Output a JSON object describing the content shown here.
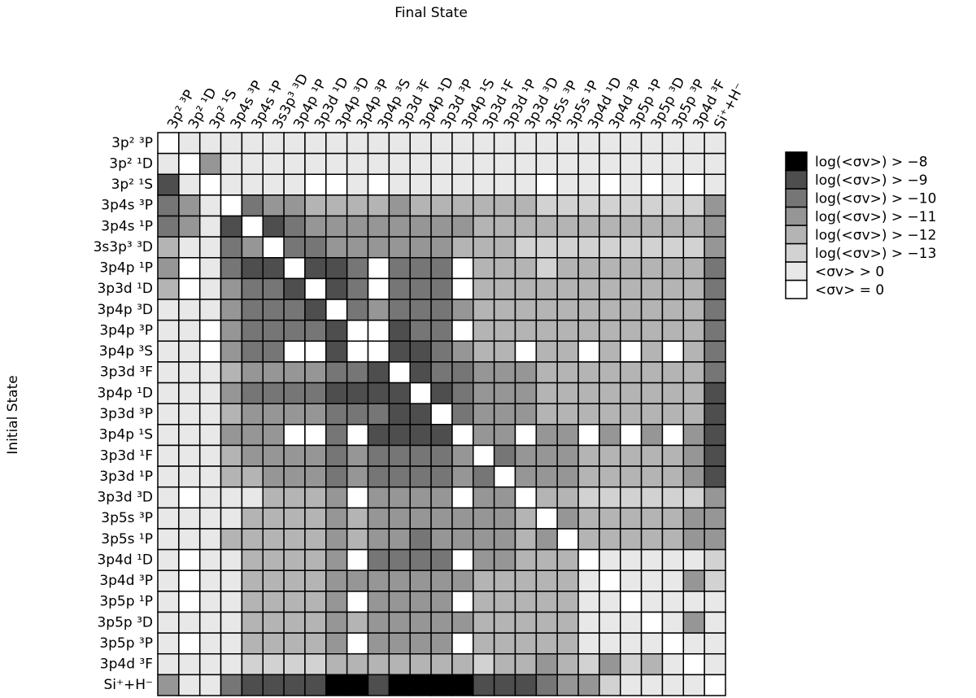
{
  "chart_data": {
    "type": "heatmap",
    "title": "Final State",
    "y_label": "Initial State",
    "columns": [
      "3p² ³P",
      "3p² ¹D",
      "3p² ¹S",
      "3p4s ³P",
      "3p4s ¹P",
      "3s3p³ ³D",
      "3p4p ¹P",
      "3p3d ¹D",
      "3p4p ³D",
      "3p4p ³P",
      "3p4p ³S",
      "3p3d ³F",
      "3p4p ¹D",
      "3p3d ³P",
      "3p4p ¹S",
      "3p3d ¹F",
      "3p3d ¹P",
      "3p3d ³D",
      "3p5s ³P",
      "3p5s ¹P",
      "3p4d ¹D",
      "3p4d ³P",
      "3p5p ¹P",
      "3p5p ³D",
      "3p5p ³P",
      "3p4d ³F",
      "Si⁺+H⁻"
    ],
    "rows": [
      "3p² ³P",
      "3p² ¹D",
      "3p² ¹S",
      "3p4s ³P",
      "3p4s ¹P",
      "3s3p³ ³D",
      "3p4p ¹P",
      "3p3d ¹D",
      "3p4p ³D",
      "3p4p ³P",
      "3p4p ³S",
      "3p3d ³F",
      "3p4p ¹D",
      "3p3d ³P",
      "3p4p ¹S",
      "3p3d ¹F",
      "3p3d ¹P",
      "3p3d ³D",
      "3p5s ³P",
      "3p5s ¹P",
      "3p4d ¹D",
      "3p4d ³P",
      "3p5p ¹P",
      "3p5p ³D",
      "3p5p ³P",
      "3p4d ³F",
      "Si⁺+H⁻"
    ],
    "legend": [
      {
        "label": "<σv> = 0",
        "color": "#ffffff"
      },
      {
        "label": "<σv> > 0",
        "color": "#e8e8e8"
      },
      {
        "label": "log(<σv>) > −13",
        "color": "#d2d2d2"
      },
      {
        "label": "log(<σv>) > −12",
        "color": "#b4b4b4"
      },
      {
        "label": "log(<σv>) > −11",
        "color": "#969696"
      },
      {
        "label": "log(<σv>) > −10",
        "color": "#767676"
      },
      {
        "label": "log(<σv>) > −9",
        "color": "#4e4e4e"
      },
      {
        "label": "log(<σv>) > −8",
        "color": "#000000"
      }
    ],
    "values": [
      [
        0,
        1,
        1,
        1,
        1,
        1,
        1,
        1,
        1,
        1,
        1,
        1,
        1,
        1,
        1,
        1,
        1,
        1,
        1,
        1,
        1,
        1,
        1,
        1,
        1,
        1,
        1
      ],
      [
        1,
        0,
        4,
        1,
        1,
        1,
        1,
        1,
        1,
        1,
        1,
        1,
        1,
        1,
        1,
        1,
        1,
        1,
        1,
        1,
        1,
        1,
        1,
        1,
        1,
        1,
        1
      ],
      [
        6,
        1,
        0,
        1,
        1,
        1,
        1,
        0,
        0,
        1,
        0,
        1,
        1,
        1,
        1,
        1,
        1,
        1,
        0,
        1,
        1,
        0,
        1,
        0,
        1,
        0,
        1
      ],
      [
        5,
        4,
        1,
        0,
        5,
        4,
        4,
        3,
        3,
        3,
        3,
        4,
        3,
        3,
        3,
        3,
        3,
        3,
        2,
        2,
        2,
        2,
        2,
        2,
        2,
        2,
        4
      ],
      [
        5,
        4,
        1,
        6,
        0,
        6,
        5,
        4,
        4,
        4,
        4,
        4,
        4,
        4,
        4,
        3,
        3,
        3,
        3,
        3,
        3,
        3,
        3,
        3,
        3,
        3,
        4
      ],
      [
        3,
        1,
        1,
        5,
        4,
        0,
        5,
        5,
        4,
        4,
        4,
        4,
        4,
        4,
        3,
        3,
        3,
        2,
        2,
        2,
        2,
        2,
        2,
        2,
        2,
        2,
        4
      ],
      [
        4,
        0,
        1,
        5,
        6,
        6,
        0,
        6,
        6,
        5,
        0,
        5,
        5,
        5,
        0,
        3,
        3,
        3,
        2,
        3,
        3,
        3,
        3,
        3,
        3,
        3,
        5
      ],
      [
        3,
        0,
        1,
        4,
        5,
        5,
        6,
        0,
        6,
        5,
        0,
        5,
        5,
        5,
        0,
        3,
        3,
        3,
        3,
        3,
        3,
        3,
        3,
        3,
        3,
        3,
        5
      ],
      [
        1,
        1,
        1,
        4,
        5,
        5,
        5,
        6,
        0,
        5,
        4,
        5,
        5,
        5,
        4,
        3,
        3,
        3,
        3,
        3,
        3,
        3,
        3,
        3,
        3,
        3,
        5
      ],
      [
        1,
        1,
        0,
        4,
        5,
        5,
        5,
        5,
        6,
        0,
        0,
        6,
        5,
        5,
        0,
        3,
        3,
        3,
        3,
        3,
        3,
        3,
        3,
        3,
        3,
        3,
        5
      ],
      [
        1,
        1,
        0,
        4,
        5,
        5,
        0,
        0,
        6,
        0,
        0,
        6,
        6,
        5,
        4,
        3,
        3,
        0,
        3,
        3,
        0,
        3,
        0,
        3,
        0,
        3,
        5
      ],
      [
        1,
        1,
        1,
        3,
        4,
        4,
        4,
        4,
        5,
        5,
        6,
        0,
        6,
        5,
        5,
        4,
        4,
        4,
        3,
        3,
        3,
        3,
        3,
        3,
        3,
        3,
        5
      ],
      [
        1,
        1,
        1,
        4,
        5,
        5,
        5,
        5,
        6,
        6,
        6,
        6,
        0,
        6,
        5,
        4,
        4,
        4,
        3,
        3,
        3,
        3,
        3,
        3,
        3,
        3,
        6
      ],
      [
        1,
        1,
        1,
        3,
        4,
        4,
        4,
        4,
        5,
        5,
        5,
        6,
        6,
        0,
        5,
        4,
        4,
        4,
        3,
        3,
        3,
        3,
        3,
        3,
        3,
        3,
        6
      ],
      [
        1,
        1,
        1,
        4,
        4,
        4,
        0,
        0,
        5,
        0,
        6,
        6,
        6,
        6,
        0,
        4,
        4,
        0,
        4,
        4,
        0,
        4,
        0,
        4,
        0,
        4,
        6
      ],
      [
        1,
        1,
        1,
        3,
        4,
        4,
        4,
        4,
        5,
        4,
        5,
        5,
        5,
        5,
        4,
        0,
        5,
        4,
        4,
        4,
        3,
        3,
        3,
        3,
        3,
        4,
        6
      ],
      [
        1,
        1,
        1,
        3,
        3,
        4,
        4,
        4,
        5,
        4,
        5,
        5,
        5,
        5,
        4,
        5,
        0,
        4,
        4,
        4,
        3,
        3,
        3,
        3,
        3,
        4,
        6
      ],
      [
        1,
        0,
        1,
        1,
        1,
        3,
        3,
        3,
        4,
        0,
        4,
        4,
        4,
        4,
        0,
        4,
        4,
        0,
        3,
        3,
        2,
        2,
        2,
        2,
        2,
        2,
        4
      ],
      [
        1,
        1,
        1,
        1,
        3,
        3,
        3,
        3,
        4,
        3,
        4,
        4,
        4,
        4,
        4,
        4,
        4,
        3,
        0,
        4,
        3,
        3,
        3,
        3,
        3,
        4,
        4
      ],
      [
        1,
        1,
        1,
        3,
        3,
        3,
        3,
        3,
        4,
        3,
        4,
        4,
        5,
        4,
        4,
        4,
        4,
        3,
        4,
        0,
        3,
        3,
        3,
        3,
        3,
        4,
        4
      ],
      [
        1,
        0,
        1,
        1,
        3,
        3,
        3,
        3,
        4,
        0,
        5,
        5,
        5,
        5,
        0,
        4,
        4,
        3,
        3,
        3,
        0,
        1,
        1,
        1,
        1,
        1,
        2
      ],
      [
        1,
        0,
        1,
        1,
        3,
        3,
        3,
        3,
        4,
        4,
        4,
        4,
        4,
        4,
        4,
        3,
        3,
        3,
        3,
        3,
        1,
        0,
        1,
        1,
        1,
        4,
        2
      ],
      [
        1,
        0,
        1,
        1,
        3,
        3,
        3,
        3,
        4,
        0,
        4,
        4,
        4,
        4,
        0,
        3,
        3,
        3,
        3,
        3,
        1,
        1,
        0,
        1,
        1,
        1,
        1
      ],
      [
        1,
        1,
        1,
        1,
        3,
        3,
        3,
        3,
        4,
        3,
        4,
        4,
        4,
        4,
        4,
        3,
        3,
        3,
        3,
        3,
        1,
        1,
        1,
        0,
        1,
        4,
        1
      ],
      [
        1,
        0,
        1,
        1,
        3,
        3,
        3,
        3,
        4,
        0,
        4,
        4,
        4,
        4,
        0,
        3,
        3,
        3,
        3,
        3,
        1,
        1,
        1,
        1,
        0,
        1,
        1
      ],
      [
        1,
        1,
        1,
        1,
        2,
        2,
        2,
        2,
        3,
        3,
        3,
        3,
        3,
        3,
        3,
        2,
        3,
        3,
        4,
        3,
        2,
        4,
        2,
        3,
        1,
        0,
        1
      ],
      [
        4,
        1,
        1,
        5,
        6,
        6,
        6,
        6,
        7,
        7,
        6,
        7,
        7,
        7,
        7,
        6,
        6,
        6,
        5,
        4,
        4,
        2,
        1,
        1,
        1,
        1,
        0
      ]
    ]
  }
}
